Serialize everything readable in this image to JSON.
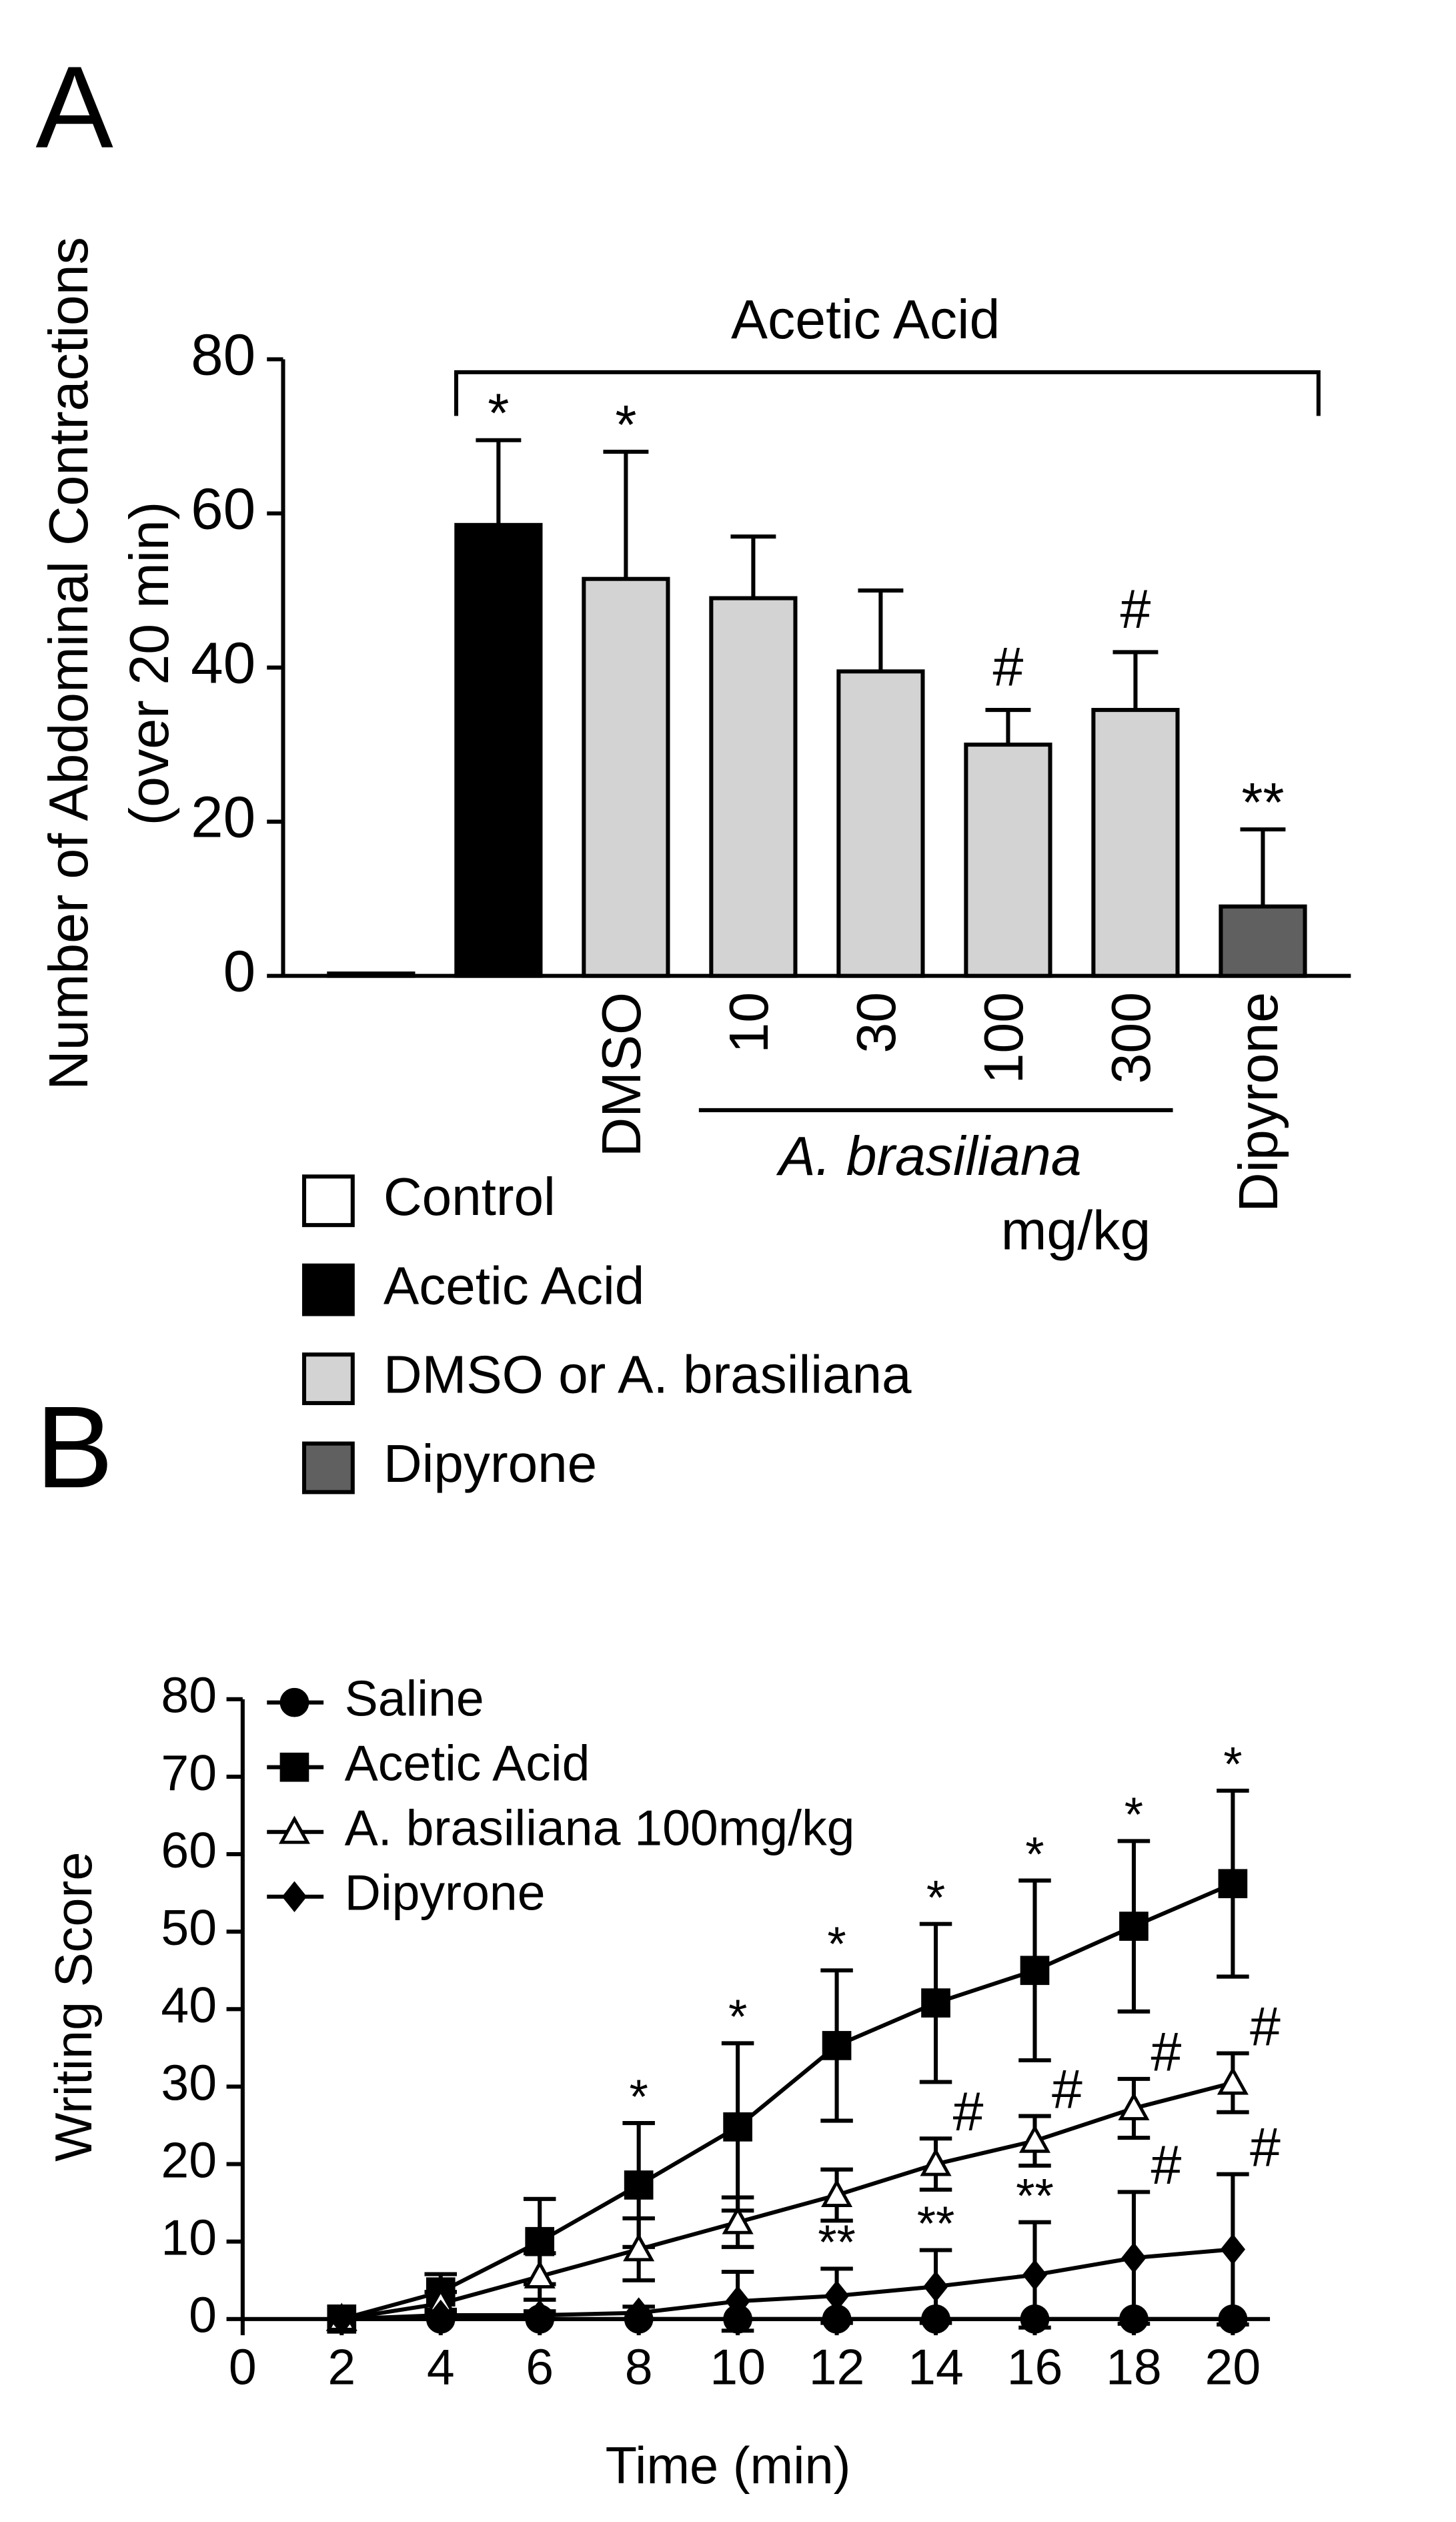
{
  "chart_data": [
    {
      "type": "bar",
      "panel": "A",
      "ylabel": [
        "Number of Abdominal Contractions",
        "(over 20 min)"
      ],
      "categories": [
        null,
        null,
        "DMSO",
        "10",
        "30",
        "100",
        "300",
        "Dipyrone"
      ],
      "values": [
        0.3,
        58.5,
        51.5,
        49,
        39.5,
        30,
        34.5,
        9
      ],
      "errors": [
        0,
        11,
        16.5,
        8,
        10.5,
        4.5,
        7.5,
        10
      ],
      "colors": [
        "#ffffff",
        "#000000",
        "#d3d3d3",
        "#d3d3d3",
        "#d3d3d3",
        "#d3d3d3",
        "#d3d3d3",
        "#606060"
      ],
      "annotations": [
        null,
        "*",
        "*",
        null,
        null,
        "#",
        "#",
        "**"
      ],
      "bracket_label": "Acetic Acid",
      "group_label": "A. brasiliana",
      "unit_label": "mg/kg",
      "legend": [
        {
          "name": "Control",
          "color": "#ffffff"
        },
        {
          "name": "Acetic Acid",
          "color": "#000000"
        },
        {
          "name": "DMSO or A. brasiliana",
          "color": "#d3d3d3"
        },
        {
          "name": "Dipyrone",
          "color": "#606060"
        }
      ],
      "ylim": [
        0,
        80
      ],
      "yticks": [
        0,
        20,
        40,
        60,
        80
      ]
    },
    {
      "type": "line",
      "panel": "B",
      "xlabel": "Time (min)",
      "ylabel": "Writing Score",
      "x": [
        2,
        4,
        6,
        8,
        10,
        12,
        14,
        16,
        18,
        20
      ],
      "series": [
        {
          "name": "Saline",
          "color": "#000000",
          "marker": "circle",
          "fill": "#000000",
          "values": [
            0,
            0,
            0,
            0,
            0,
            0,
            0,
            0,
            0,
            0
          ],
          "errors": [
            0,
            0,
            0,
            0,
            0,
            0,
            0,
            0,
            0,
            0
          ],
          "annotations": [
            null,
            null,
            null,
            null,
            null,
            null,
            null,
            null,
            null,
            null
          ]
        },
        {
          "name": "Acetic Acid",
          "color": "#000000",
          "marker": "square",
          "fill": "#000000",
          "values": [
            0,
            3.5,
            10,
            17.3,
            24.8,
            35.3,
            40.8,
            45,
            50.7,
            56.2
          ],
          "errors": [
            0,
            2.3,
            5.5,
            8,
            10.8,
            9.7,
            10.2,
            11.6,
            11,
            12
          ],
          "annotations": [
            null,
            null,
            null,
            "*",
            "*",
            "*",
            "*",
            "*",
            "*",
            "*"
          ]
        },
        {
          "name": "A. brasiliana 100mg/kg",
          "color": "#000000",
          "marker": "triangle",
          "fill": "#ffffff",
          "values": [
            0,
            2,
            5.5,
            9,
            12.5,
            16,
            20,
            23,
            27.2,
            30.5
          ],
          "errors": [
            0,
            1.5,
            3,
            4,
            3.2,
            3.3,
            3.3,
            3.2,
            3.8,
            3.8
          ],
          "annotations": [
            null,
            null,
            null,
            null,
            null,
            null,
            "#",
            "#",
            "#",
            "#"
          ]
        },
        {
          "name": "Dipyrone",
          "color": "#000000",
          "marker": "diamond",
          "fill": "#000000",
          "values": [
            0,
            0.5,
            0.5,
            0.8,
            2.3,
            3,
            4.2,
            5.7,
            7.9,
            9
          ],
          "errors": [
            0,
            0.5,
            0.5,
            0.8,
            3.8,
            3.5,
            4.7,
            6.8,
            8.5,
            9.7
          ],
          "annotations": [
            null,
            null,
            null,
            null,
            null,
            "**",
            "**",
            "**",
            "#",
            "#"
          ]
        }
      ],
      "xlim": [
        0,
        20.75
      ],
      "xticks": [
        0,
        2,
        4,
        6,
        8,
        10,
        12,
        14,
        16,
        18,
        20
      ],
      "ylim": [
        0,
        80
      ],
      "yticks": [
        0,
        10,
        20,
        30,
        40,
        50,
        60,
        70,
        80
      ]
    }
  ]
}
